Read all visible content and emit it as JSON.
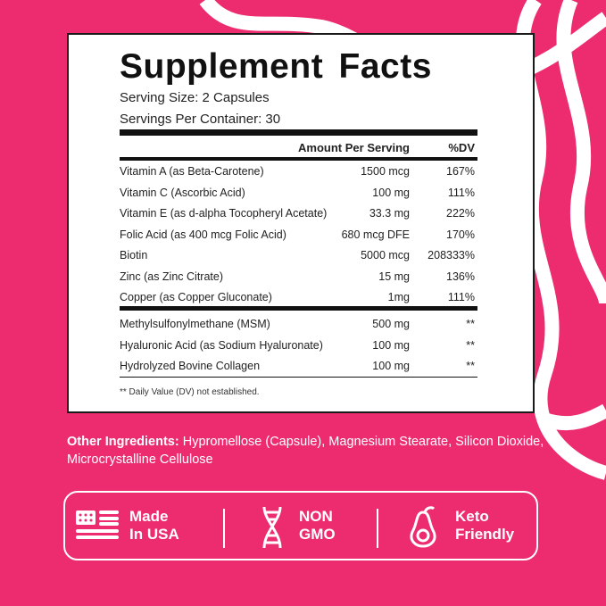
{
  "label": {
    "title": "Supplement Facts",
    "serving_size": "Serving Size: 2 Capsules",
    "servings_per_container": "Servings Per Container: 30",
    "header": {
      "amount": "Amount Per Serving",
      "dv": "%DV"
    },
    "rows": [
      {
        "name": "Vitamin A (as Beta-Carotene)",
        "amount": "1500 mcg",
        "dv": "167%"
      },
      {
        "name": "Vitamin C (Ascorbic Acid)",
        "amount": "100 mg",
        "dv": "111%"
      },
      {
        "name": "Vitamin E (as d-alpha Tocopheryl Acetate)",
        "amount": "33.3 mg",
        "dv": "222%"
      },
      {
        "name": "Folic Acid (as 400 mcg Folic Acid)",
        "amount": "680 mcg DFE",
        "dv": "170%"
      },
      {
        "name": "Biotin",
        "amount": "5000 mcg",
        "dv": "208333%"
      },
      {
        "name": "Zinc (as Zinc Citrate)",
        "amount": "15 mg",
        "dv": "136%"
      },
      {
        "name": "Copper (as Copper Gluconate)",
        "amount": "1mg",
        "dv": "111%"
      }
    ],
    "rows2": [
      {
        "name": "Methylsulfonylmethane (MSM)",
        "amount": "500 mg",
        "dv": "**"
      },
      {
        "name": "Hyaluronic Acid (as Sodium Hyaluronate)",
        "amount": "100 mg",
        "dv": "**"
      },
      {
        "name": "Hydrolyzed Bovine Collagen",
        "amount": "100 mg",
        "dv": "**"
      }
    ],
    "footnote": "** Daily Value (DV) not established."
  },
  "other": {
    "label": "Other Ingredients:",
    "value": " Hypromellose (Capsule), Magnesium Stearate, Silicon Dioxide, Microcrystalline Cellulose"
  },
  "badges": [
    {
      "icon": "us-flag-icon",
      "l1": "Made",
      "l2": "In USA"
    },
    {
      "icon": "dna-icon",
      "l1": "NON",
      "l2": "GMO"
    },
    {
      "icon": "avocado-icon",
      "l1": "Keto",
      "l2": "Friendly"
    }
  ],
  "colors": {
    "background": "#ec2c6e",
    "card": "#ffffff",
    "text": "#111111"
  }
}
